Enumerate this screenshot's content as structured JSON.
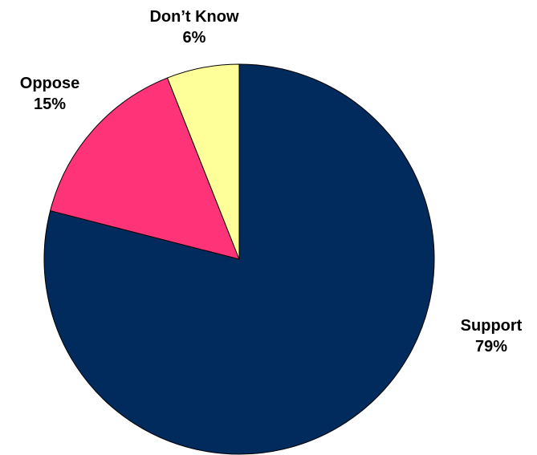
{
  "chart_data": {
    "type": "pie",
    "title": "",
    "categories": [
      "Support",
      "Oppose",
      "Don’t Know"
    ],
    "values": [
      79,
      15,
      6
    ],
    "value_labels": [
      "79%",
      "15%",
      "6%"
    ],
    "colors": [
      "#002B5C",
      "#FF3377",
      "#FFFF99"
    ],
    "start": "12 o'clock",
    "direction": "clockwise",
    "legend": "none"
  }
}
